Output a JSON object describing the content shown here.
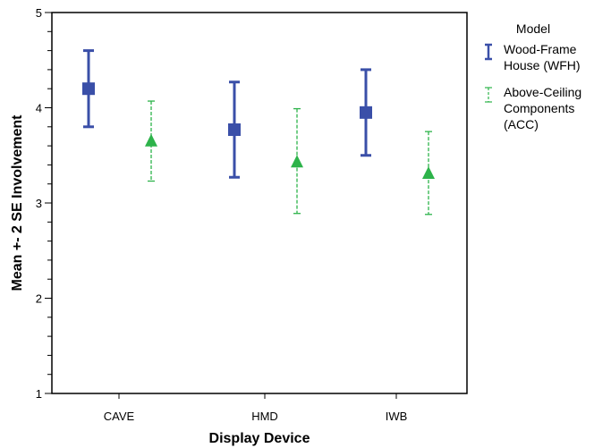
{
  "chart_data": {
    "type": "scatter",
    "xlabel": "Display Device",
    "ylabel": "Mean +- 2 SE Involvement",
    "ylim": [
      1,
      5
    ],
    "yticks": [
      "1",
      "2",
      "3",
      "4",
      "5"
    ],
    "categories": [
      "CAVE",
      "HMD",
      "IWB"
    ],
    "grid": false,
    "legend": {
      "title": "Model",
      "placement": "right",
      "entries": [
        {
          "lines": [
            "Wood-Frame",
            "House (WFH)"
          ]
        },
        {
          "lines": [
            "Above-Ceiling",
            "Components",
            "(ACC)"
          ]
        }
      ]
    },
    "series": [
      {
        "name": "Wood-Frame House (WFH)",
        "marker": "square",
        "line_style": "solid",
        "color": "#3a4fa8",
        "means": [
          4.2,
          3.77,
          3.95
        ],
        "lower": [
          3.8,
          3.27,
          3.5
        ],
        "upper": [
          4.6,
          4.27,
          4.4
        ]
      },
      {
        "name": "Above-Ceiling Components (ACC)",
        "marker": "triangle",
        "line_style": "dashed",
        "color": "#2db34a",
        "means": [
          3.65,
          3.43,
          3.31
        ],
        "lower": [
          3.23,
          2.89,
          2.88
        ],
        "upper": [
          4.07,
          3.99,
          3.75
        ]
      }
    ]
  }
}
